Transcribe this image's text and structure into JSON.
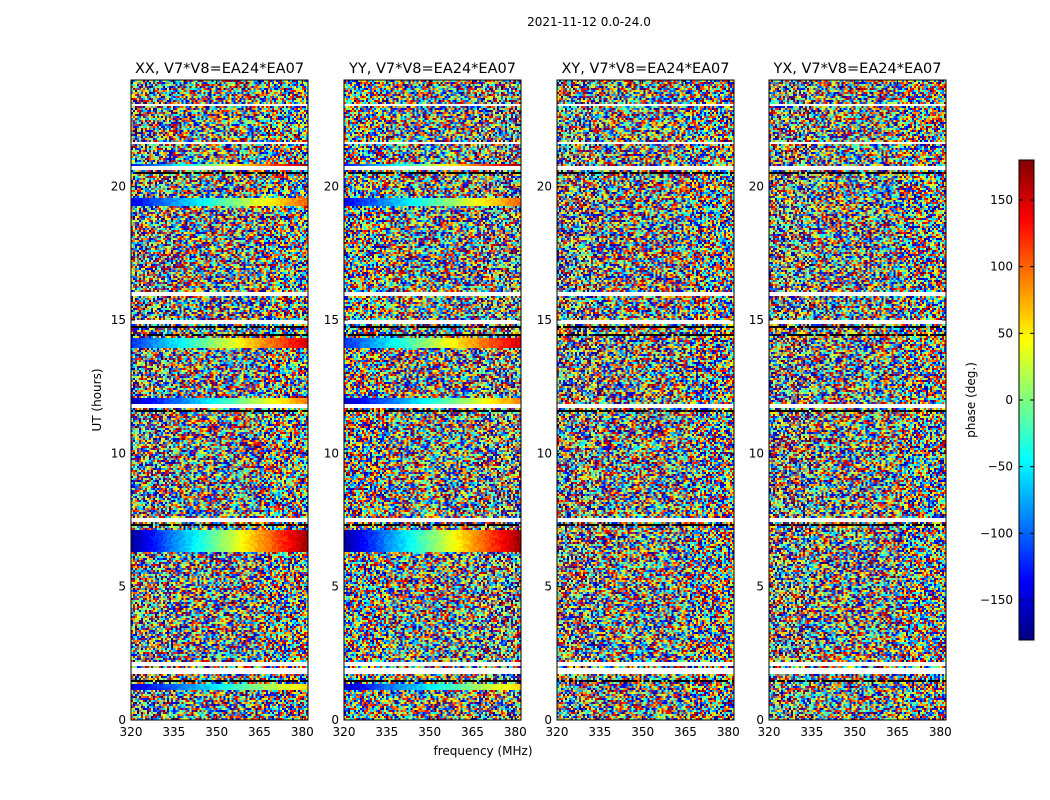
{
  "chart_data": {
    "type": "heatmap",
    "suptitle": "2021-11-12 0.0-24.0",
    "panels": [
      {
        "title": "XX, V7*V8=EA24*EA07",
        "pol": "XX"
      },
      {
        "title": "YY, V7*V8=EA24*EA07",
        "pol": "YY"
      },
      {
        "title": "XY, V7*V8=EA24*EA07",
        "pol": "XY"
      },
      {
        "title": "YX, V7*V8=EA24*EA07",
        "pol": "YX"
      }
    ],
    "xlabel": "frequency (MHz)",
    "ylabel": "UT (hours)",
    "xlim": [
      320,
      382
    ],
    "ylim": [
      0,
      24
    ],
    "xticks": [
      320,
      335,
      350,
      365,
      380
    ],
    "yticks": [
      0,
      5,
      10,
      15,
      20
    ],
    "xtick_labels": [
      "320",
      "335",
      "350",
      "365",
      "380"
    ],
    "ytick_labels": [
      "0",
      "5",
      "10",
      "15",
      "20"
    ],
    "colorbar": {
      "label": "phase (deg.)",
      "range": [
        -180,
        180
      ],
      "ticks": [
        150,
        100,
        50,
        0,
        -50,
        -100,
        -150
      ],
      "tick_labels": [
        "150",
        "100",
        "50",
        "0",
        "−50",
        "−100",
        "−150"
      ],
      "colormap": "jet"
    },
    "white_bands_hours": [
      [
        1.7,
        1.95
      ],
      [
        2.05,
        2.2
      ],
      [
        7.4,
        7.55
      ],
      [
        11.7,
        11.85
      ],
      [
        14.85,
        15.0
      ],
      [
        15.9,
        16.05
      ],
      [
        20.6,
        20.75
      ],
      [
        21.6,
        21.7
      ],
      [
        23.0,
        23.1
      ]
    ],
    "black_bands_hours": [
      [
        1.45,
        1.5
      ],
      [
        7.3,
        7.35
      ],
      [
        11.55,
        11.6
      ],
      [
        14.4,
        14.5
      ],
      [
        14.7,
        14.8
      ],
      [
        20.5,
        20.55
      ]
    ],
    "phase_slope_bands": [
      {
        "ut_hours": [
          1.1,
          1.35
        ],
        "pols": [
          "XX",
          "YY"
        ],
        "phase_start": -150,
        "phase_end": 60
      },
      {
        "ut_hours": [
          6.3,
          7.15
        ],
        "pols": [
          "XX",
          "YY"
        ],
        "phase_start": -170,
        "phase_end": 170
      },
      {
        "ut_hours": [
          11.85,
          12.1
        ],
        "pols": [
          "XX",
          "YY"
        ],
        "phase_start": -160,
        "phase_end": 90
      },
      {
        "ut_hours": [
          13.95,
          14.3
        ],
        "pols": [
          "XX",
          "YY"
        ],
        "phase_start": -120,
        "phase_end": 150
      },
      {
        "ut_hours": [
          19.3,
          19.55
        ],
        "pols": [
          "XX",
          "YY"
        ],
        "phase_start": -140,
        "phase_end": 100
      },
      {
        "ut_hours": [
          20.7,
          20.85
        ],
        "pols": [
          "XX",
          "YY"
        ],
        "phase_start": -130,
        "phase_end": 170
      }
    ]
  }
}
